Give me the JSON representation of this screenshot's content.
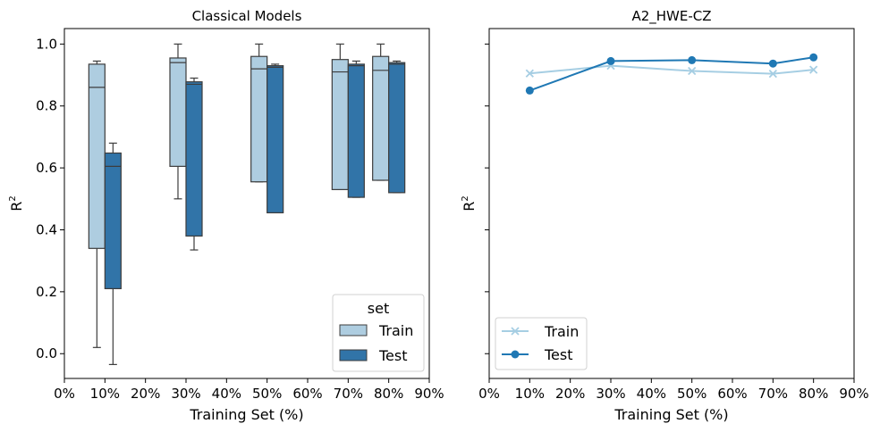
{
  "chart_data": [
    {
      "type": "box",
      "title": "Classical Models",
      "xlabel": "Training Set (%)",
      "ylabel": "R",
      "ylabel_sup": "2",
      "xlim": [
        0,
        90
      ],
      "ylim": [
        -0.08,
        1.05
      ],
      "x_ticks": [
        0,
        10,
        20,
        30,
        40,
        50,
        60,
        70,
        80,
        90
      ],
      "x_tick_labels": [
        "0%",
        "10%",
        "20%",
        "30%",
        "40%",
        "50%",
        "60%",
        "70%",
        "80%",
        "90%"
      ],
      "y_ticks": [
        0.0,
        0.2,
        0.4,
        0.6,
        0.8,
        1.0
      ],
      "y_tick_labels": [
        "0.0",
        "0.2",
        "0.4",
        "0.6",
        "0.8",
        "1.0"
      ],
      "legend": {
        "title": "set",
        "position": "lower-right",
        "entries": [
          "Train",
          "Test"
        ]
      },
      "series": [
        {
          "name": "Train",
          "color": "#aecde0",
          "boxes": [
            {
              "x": 10,
              "whisker_low": 0.02,
              "q1": 0.34,
              "median": 0.86,
              "q3": 0.935,
              "whisker_high": 0.945
            },
            {
              "x": 30,
              "whisker_low": 0.5,
              "q1": 0.605,
              "median": 0.94,
              "q3": 0.955,
              "whisker_high": 1.0
            },
            {
              "x": 50,
              "whisker_low": 0.555,
              "q1": 0.555,
              "median": 0.92,
              "q3": 0.96,
              "whisker_high": 1.0
            },
            {
              "x": 70,
              "whisker_low": 0.53,
              "q1": 0.53,
              "median": 0.91,
              "q3": 0.95,
              "whisker_high": 1.0
            },
            {
              "x": 80,
              "whisker_low": 0.56,
              "q1": 0.56,
              "median": 0.915,
              "q3": 0.96,
              "whisker_high": 1.0
            }
          ]
        },
        {
          "name": "Test",
          "color": "#3174a8",
          "boxes": [
            {
              "x": 10,
              "whisker_low": -0.035,
              "q1": 0.21,
              "median": 0.605,
              "q3": 0.648,
              "whisker_high": 0.68
            },
            {
              "x": 30,
              "whisker_low": 0.335,
              "q1": 0.38,
              "median": 0.87,
              "q3": 0.878,
              "whisker_high": 0.89
            },
            {
              "x": 50,
              "whisker_low": 0.455,
              "q1": 0.455,
              "median": 0.925,
              "q3": 0.93,
              "whisker_high": 0.935
            },
            {
              "x": 70,
              "whisker_low": 0.505,
              "q1": 0.505,
              "median": 0.93,
              "q3": 0.935,
              "whisker_high": 0.945
            },
            {
              "x": 80,
              "whisker_low": 0.52,
              "q1": 0.52,
              "median": 0.935,
              "q3": 0.94,
              "whisker_high": 0.945
            }
          ]
        }
      ]
    },
    {
      "type": "line",
      "title": "A2_HWE-CZ",
      "xlabel": "Training Set (%)",
      "ylabel": "R",
      "ylabel_sup": "2",
      "xlim": [
        0,
        90
      ],
      "ylim": [
        -0.08,
        1.05
      ],
      "x_ticks": [
        0,
        10,
        20,
        30,
        40,
        50,
        60,
        70,
        80,
        90
      ],
      "x_tick_labels": [
        "0%",
        "10%",
        "20%",
        "30%",
        "40%",
        "50%",
        "60%",
        "70%",
        "80%",
        "90%"
      ],
      "y_ticks": [
        0.0,
        0.2,
        0.4,
        0.6,
        0.8,
        1.0
      ],
      "legend": {
        "position": "lower-left",
        "entries": [
          "Train",
          "Test"
        ]
      },
      "series": [
        {
          "name": "Train",
          "color": "#a6cee3",
          "marker": "x",
          "x": [
            10,
            30,
            50,
            70,
            80
          ],
          "y": [
            0.905,
            0.93,
            0.913,
            0.904,
            0.917
          ]
        },
        {
          "name": "Test",
          "color": "#1f78b4",
          "marker": "o",
          "x": [
            10,
            30,
            50,
            70,
            80
          ],
          "y": [
            0.85,
            0.945,
            0.948,
            0.937,
            0.957
          ]
        }
      ]
    }
  ]
}
